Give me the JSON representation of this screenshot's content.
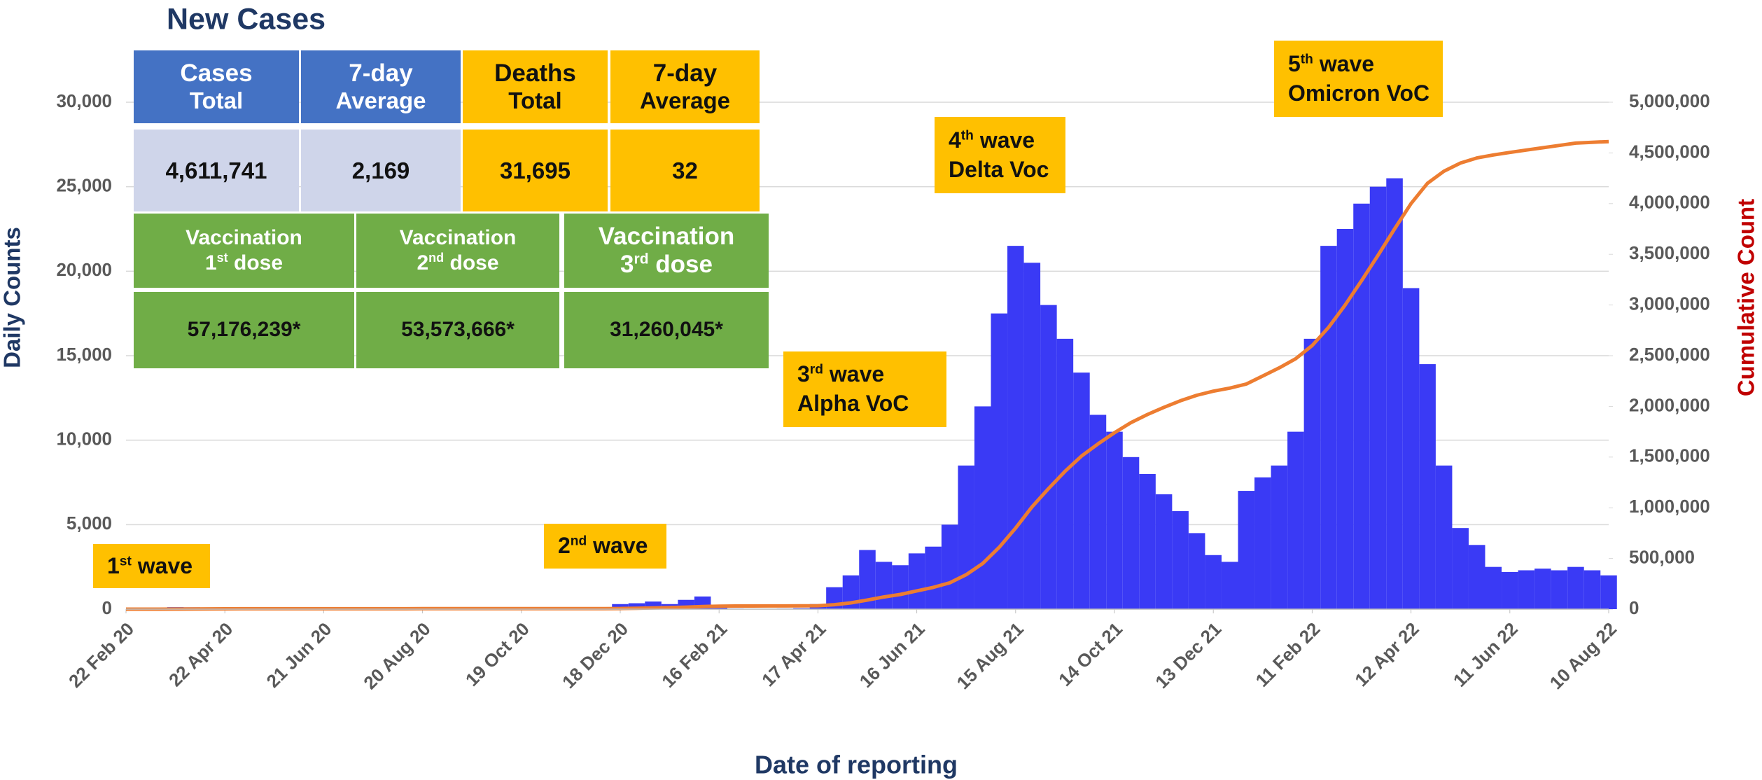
{
  "chart_data": {
    "type": "bar_line",
    "title": "New Cases",
    "xlabel": "Date of reporting",
    "ylabel": "Daily Counts",
    "y2label": "Cumulative Count",
    "x": [
      "2020-02-22",
      "2020-03-03",
      "2020-03-13",
      "2020-03-23",
      "2020-04-02",
      "2020-04-12",
      "2020-04-22",
      "2020-05-02",
      "2020-05-12",
      "2020-05-22",
      "2020-06-01",
      "2020-06-11",
      "2020-06-21",
      "2020-07-01",
      "2020-07-11",
      "2020-07-21",
      "2020-07-31",
      "2020-08-10",
      "2020-08-20",
      "2020-08-30",
      "2020-09-09",
      "2020-09-19",
      "2020-09-29",
      "2020-10-09",
      "2020-10-19",
      "2020-10-29",
      "2020-11-08",
      "2020-11-18",
      "2020-11-28",
      "2020-12-08",
      "2020-12-18",
      "2020-12-28",
      "2021-01-07",
      "2021-01-17",
      "2021-01-27",
      "2021-02-06",
      "2021-02-16",
      "2021-02-26",
      "2021-03-08",
      "2021-03-18",
      "2021-03-28",
      "2021-04-07",
      "2021-04-17",
      "2021-04-27",
      "2021-05-07",
      "2021-05-17",
      "2021-05-27",
      "2021-06-06",
      "2021-06-16",
      "2021-06-26",
      "2021-07-06",
      "2021-07-16",
      "2021-07-26",
      "2021-08-05",
      "2021-08-15",
      "2021-08-25",
      "2021-09-04",
      "2021-09-14",
      "2021-09-24",
      "2021-10-04",
      "2021-10-14",
      "2021-10-24",
      "2021-11-03",
      "2021-11-13",
      "2021-11-23",
      "2021-12-03",
      "2021-12-13",
      "2021-12-23",
      "2022-01-02",
      "2022-01-12",
      "2022-01-22",
      "2022-02-01",
      "2022-02-11",
      "2022-02-21",
      "2022-03-03",
      "2022-03-13",
      "2022-03-23",
      "2022-04-02",
      "2022-04-12",
      "2022-04-22",
      "2022-05-02",
      "2022-05-12",
      "2022-05-22",
      "2022-06-01",
      "2022-06-11",
      "2022-06-21",
      "2022-07-01",
      "2022-07-11",
      "2022-07-21",
      "2022-07-31",
      "2022-08-10"
    ],
    "series": [
      {
        "type": "bar",
        "color": "#3a3af5",
        "values": [
          0,
          0,
          60,
          120,
          110,
          90,
          50,
          30,
          15,
          10,
          10,
          5,
          5,
          5,
          5,
          5,
          5,
          5,
          5,
          5,
          5,
          5,
          5,
          5,
          5,
          5,
          5,
          5,
          5,
          20,
          300,
          350,
          450,
          300,
          550,
          750,
          250,
          30,
          20,
          20,
          30,
          60,
          300,
          1300,
          2000,
          3500,
          2800,
          2600,
          3300,
          3700,
          5000,
          8500,
          12000,
          17500,
          21500,
          20500,
          18000,
          16000,
          14000,
          11500,
          10500,
          9000,
          8000,
          6800,
          5800,
          4500,
          3200,
          2800,
          7000,
          7800,
          8500,
          10500,
          16000,
          21500,
          22500,
          24000,
          25000,
          25500,
          19000,
          14500,
          8500,
          4800,
          3800,
          2500,
          2200,
          2300,
          2400,
          2300,
          2500,
          2300,
          2000
        ]
      },
      {
        "type": "line",
        "axis": "y2",
        "color": "#ed7d31",
        "values": [
          0,
          10,
          200,
          900,
          1900,
          2900,
          3500,
          3800,
          3950,
          4050,
          4100,
          4150,
          4200,
          4250,
          4300,
          4350,
          4400,
          4450,
          4500,
          4550,
          4600,
          4650,
          4700,
          4750,
          4800,
          4850,
          4900,
          4950,
          5000,
          5100,
          6000,
          8500,
          12500,
          15500,
          20000,
          26000,
          30000,
          31000,
          31300,
          31500,
          31800,
          32300,
          34000,
          44000,
          62000,
          90000,
          120000,
          145000,
          180000,
          215000,
          260000,
          340000,
          450000,
          610000,
          800000,
          1010000,
          1190000,
          1360000,
          1510000,
          1630000,
          1740000,
          1840000,
          1920000,
          1990000,
          2055000,
          2110000,
          2150000,
          2180000,
          2220000,
          2300000,
          2380000,
          2470000,
          2600000,
          2780000,
          3000000,
          3240000,
          3490000,
          3750000,
          4000000,
          4200000,
          4320000,
          4400000,
          4450000,
          4480000,
          4505000,
          4528000,
          4551000,
          4574000,
          4597000,
          4605000,
          4611741
        ]
      }
    ],
    "xlim": [
      "2020-02-22",
      "2022-08-10"
    ],
    "xticks": [
      {
        "value": "2020-02-22",
        "label": "22 Feb 20"
      },
      {
        "value": "2020-04-22",
        "label": "22 Apr 20"
      },
      {
        "value": "2020-06-21",
        "label": "21 Jun 20"
      },
      {
        "value": "2020-08-20",
        "label": "20 Aug 20"
      },
      {
        "value": "2020-10-19",
        "label": "19 Oct 20"
      },
      {
        "value": "2020-12-18",
        "label": "18 Dec 20"
      },
      {
        "value": "2021-02-16",
        "label": "16 Feb 21"
      },
      {
        "value": "2021-04-17",
        "label": "17 Apr 21"
      },
      {
        "value": "2021-06-16",
        "label": "16 Jun 21"
      },
      {
        "value": "2021-08-15",
        "label": "15 Aug 21"
      },
      {
        "value": "2021-10-14",
        "label": "14 Oct 21"
      },
      {
        "value": "2021-12-13",
        "label": "13 Dec 21"
      },
      {
        "value": "2022-02-11",
        "label": "11 Feb 22"
      },
      {
        "value": "2022-04-12",
        "label": "12 Apr 22"
      },
      {
        "value": "2022-06-11",
        "label": "11 Jun 22"
      },
      {
        "value": "2022-08-10",
        "label": "10 Aug 22"
      }
    ],
    "ylim": [
      0,
      30000
    ],
    "yticks": [
      0,
      {
        "value": 5000,
        "label": "5,000"
      },
      {
        "value": 10000,
        "label": "10,000"
      },
      {
        "value": 15000,
        "label": "15,000"
      },
      {
        "value": 20000,
        "label": "20,000"
      },
      {
        "value": 25000,
        "label": "25,000"
      },
      {
        "value": 30000,
        "label": "30,000"
      }
    ],
    "y2lim": [
      0,
      5000000
    ],
    "y2ticks": [
      0,
      {
        "value": 500000,
        "label": "500,000"
      },
      {
        "value": 1000000,
        "label": "1,000,000"
      },
      {
        "value": 1500000,
        "label": "1,500,000"
      },
      {
        "value": 2000000,
        "label": "2,000,000"
      },
      {
        "value": 2500000,
        "label": "2,500,000"
      },
      {
        "value": 3000000,
        "label": "3,000,000"
      },
      {
        "value": 3500000,
        "label": "3,500,000"
      },
      {
        "value": 4000000,
        "label": "4,000,000"
      },
      {
        "value": 4500000,
        "label": "4,500,000"
      },
      {
        "value": 5000000,
        "label": "5,000,000"
      }
    ],
    "grid": true,
    "annotations": [
      {
        "num": "1",
        "sup": "st",
        "rest": " wave"
      },
      {
        "num": "2",
        "sup": "nd",
        "rest": " wave"
      },
      {
        "num": "3",
        "sup": "rd",
        "rest": " wave",
        "line2": "Alpha VoC"
      },
      {
        "num": "4",
        "sup": "th",
        "rest": " wave",
        "line2": "Delta Voc"
      },
      {
        "num": "5",
        "sup": "th",
        "rest": " wave",
        "line2": "Omicron VoC"
      }
    ]
  },
  "summary": {
    "headers": [
      [
        "Cases",
        "Total"
      ],
      [
        "7-day",
        "Average"
      ],
      [
        "Deaths",
        "Total"
      ],
      [
        "7-day",
        "Average"
      ]
    ],
    "values": [
      "4,611,741",
      "2,169",
      "31,695",
      "32"
    ],
    "vaccination": [
      {
        "title": "Vaccination",
        "num": "1",
        "sup": "st",
        "rest": " dose",
        "value": "57,176,239*"
      },
      {
        "title": "Vaccination",
        "num": "2",
        "sup": "nd",
        "rest": " dose",
        "value": "53,573,666*"
      },
      {
        "title": "Vaccination",
        "num": "3",
        "sup": "rd",
        "rest": " dose",
        "value": "31,260,045*"
      }
    ]
  }
}
